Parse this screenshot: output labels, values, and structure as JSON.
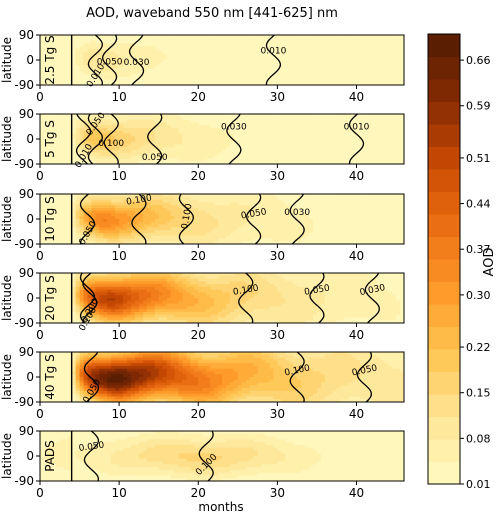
{
  "chart_data": {
    "type": "heatmap",
    "title": "AOD, waveband 550 nm [441-625] nm",
    "xlabel": "months",
    "ylabel": "latitude",
    "xlim": [
      0,
      46
    ],
    "ylim": [
      -90,
      90
    ],
    "x_ticks": [
      "0",
      "10",
      "20",
      "30",
      "40"
    ],
    "x_tick_values": [
      0,
      10,
      20,
      30,
      40
    ],
    "y_ticks": [
      "-90",
      "0",
      "90"
    ],
    "y_tick_values": [
      -90,
      0,
      90
    ],
    "event_line_month": 4,
    "colorbar": {
      "label": "AOD",
      "ticks": [
        "0.01",
        "0.08",
        "0.15",
        "0.22",
        "0.30",
        "0.37",
        "0.44",
        "0.51",
        "0.59",
        "0.66"
      ],
      "tick_values": [
        0.01,
        0.08,
        0.15,
        0.22,
        0.3,
        0.37,
        0.44,
        0.51,
        0.59,
        0.66
      ],
      "min": 0.01,
      "max": 0.7,
      "levels": 20,
      "colormap": [
        "#fff7bc",
        "#fee391",
        "#fec44f",
        "#fe9929",
        "#ec7014",
        "#cc4c02",
        "#8c2d04",
        "#5a1e02"
      ]
    },
    "panels": [
      {
        "name": "2.5 Tg S",
        "peak_aod": 0.12,
        "peak_month": 7,
        "decay_months": 7,
        "lat_width": 55,
        "pads": false,
        "contour_labels": [
          {
            "text": "0.010",
            "month": 7,
            "lat": -55,
            "rot": -58
          },
          {
            "text": "0.050",
            "month": 8.8,
            "lat": -5,
            "rot": 0
          },
          {
            "text": "0.030",
            "month": 12.2,
            "lat": -8,
            "rot": 0
          },
          {
            "text": "0.010",
            "month": 29.5,
            "lat": 35,
            "rot": 0
          }
        ]
      },
      {
        "name": "5 Tg S",
        "peak_aod": 0.24,
        "peak_month": 7,
        "decay_months": 9,
        "lat_width": 60,
        "pads": false,
        "contour_labels": [
          {
            "text": "0.100",
            "month": 9,
            "lat": -15,
            "rot": 0
          },
          {
            "text": "0.050",
            "month": 14.5,
            "lat": -65,
            "rot": 0
          },
          {
            "text": "0.030",
            "month": 24.5,
            "lat": 45,
            "rot": 0
          },
          {
            "text": "0.010",
            "month": 40,
            "lat": 45,
            "rot": 0
          },
          {
            "text": "0.050",
            "month": 7,
            "lat": 55,
            "rot": -55
          },
          {
            "text": "0.010",
            "month": 5.5,
            "lat": -60,
            "rot": -60
          }
        ]
      },
      {
        "name": "10 Tg S",
        "peak_aod": 0.38,
        "peak_month": 8,
        "decay_months": 11,
        "lat_width": 65,
        "pads": false,
        "contour_labels": [
          {
            "text": "0.100",
            "month": 12.5,
            "lat": 70,
            "rot": -10
          },
          {
            "text": "0.050",
            "month": 27,
            "lat": 20,
            "rot": -10
          },
          {
            "text": "0.030",
            "month": 32.5,
            "lat": 25,
            "rot": 0
          },
          {
            "text": "0.050",
            "month": 6,
            "lat": -50,
            "rot": -60
          },
          {
            "text": "0.100",
            "month": 18.5,
            "lat": 10,
            "rot": -80
          }
        ]
      },
      {
        "name": "20 Tg S",
        "peak_aod": 0.55,
        "peak_month": 9,
        "decay_months": 13,
        "lat_width": 70,
        "pads": false,
        "contour_labels": [
          {
            "text": "0.100",
            "month": 26,
            "lat": 30,
            "rot": -10
          },
          {
            "text": "0.050",
            "month": 35,
            "lat": 30,
            "rot": -10
          },
          {
            "text": "0.030",
            "month": 42,
            "lat": 30,
            "rot": -12
          },
          {
            "text": "0.200",
            "month": 6.3,
            "lat": -45,
            "rot": -60
          },
          {
            "text": "0.100",
            "month": 6,
            "lat": -75,
            "rot": -60
          }
        ]
      },
      {
        "name": "40 Tg S",
        "peak_aod": 0.7,
        "peak_month": 10,
        "decay_months": 16,
        "lat_width": 72,
        "pads": false,
        "contour_labels": [
          {
            "text": "0.100",
            "month": 32.5,
            "lat": 25,
            "rot": -12
          },
          {
            "text": "0.050",
            "month": 41,
            "lat": 25,
            "rot": -12
          },
          {
            "text": "0.050",
            "month": 6.5,
            "lat": -50,
            "rot": -60
          }
        ]
      },
      {
        "name": "PADS",
        "peak_aod": 0.16,
        "peak_month": 13,
        "decay_months": 14,
        "lat_width": 80,
        "pads": true,
        "contour_labels": [
          {
            "text": "0.050",
            "month": 6.5,
            "lat": 35,
            "rot": -8
          },
          {
            "text": "0.100",
            "month": 21,
            "lat": -30,
            "rot": -45
          }
        ]
      }
    ]
  }
}
